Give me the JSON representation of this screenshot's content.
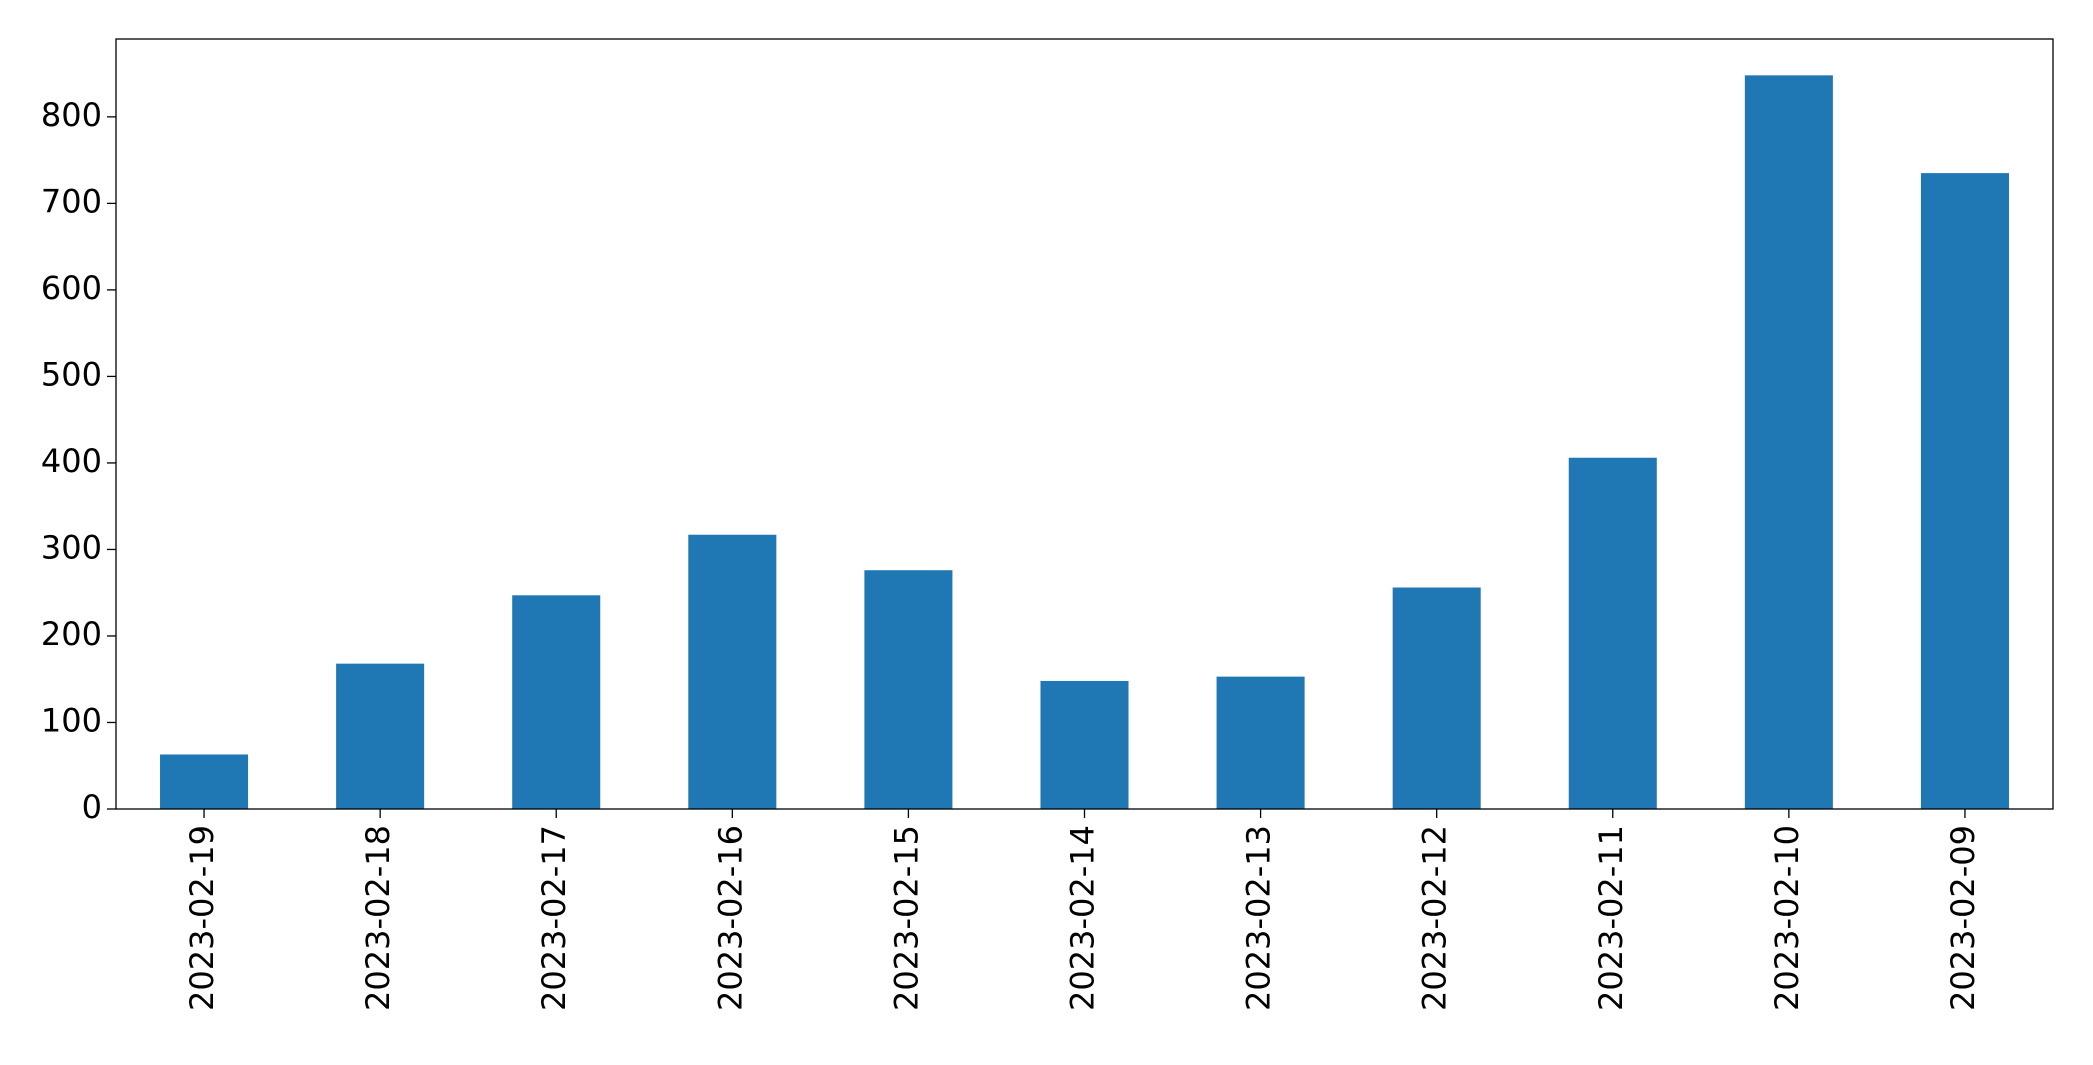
{
  "chart_data": {
    "type": "bar",
    "categories": [
      "2023-02-19",
      "2023-02-18",
      "2023-02-17",
      "2023-02-16",
      "2023-02-15",
      "2023-02-14",
      "2023-02-13",
      "2023-02-12",
      "2023-02-11",
      "2023-02-10",
      "2023-02-09"
    ],
    "values": [
      63,
      168,
      247,
      317,
      276,
      148,
      153,
      256,
      406,
      848,
      735
    ],
    "color": "#1f77b4",
    "ylim": [
      0,
      890
    ],
    "yticks": [
      0,
      100,
      200,
      300,
      400,
      500,
      600,
      700,
      800
    ],
    "grid": false
  }
}
